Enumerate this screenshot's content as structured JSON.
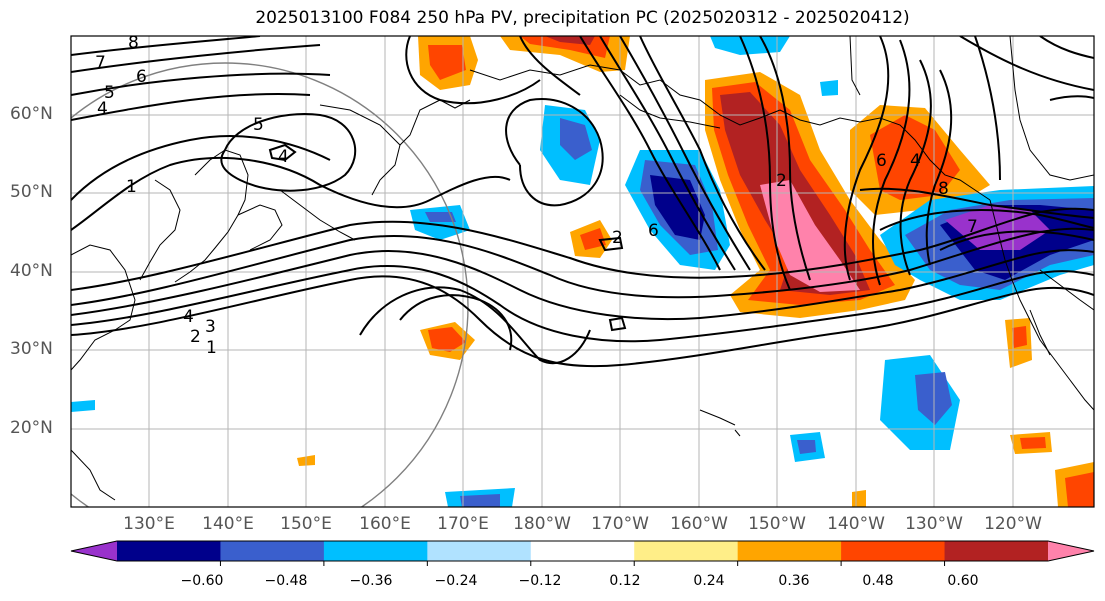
{
  "title": "2025013100 F084 250 hPa PV, precipitation PC (2025020312 - 2025020412)",
  "map": {
    "lat_ticks": [
      "60°N",
      "50°N",
      "40°N",
      "30°N",
      "20°N"
    ],
    "lon_ticks": [
      "130°E",
      "140°E",
      "150°E",
      "160°E",
      "170°E",
      "180°W",
      "170°W",
      "160°W",
      "150°W",
      "140°W",
      "130°W",
      "120°W"
    ],
    "contour_labels": [
      "8",
      "7",
      "6",
      "5",
      "4",
      "5",
      "4",
      "1",
      "1",
      "2",
      "3",
      "4",
      "2",
      "6",
      "2",
      "6",
      "8",
      "4",
      "7"
    ]
  },
  "colorbar": {
    "colors": [
      "#9932cc",
      "#00008b",
      "#3a5fcd",
      "#00bfff",
      "#b0e2ff",
      "#ffffff",
      "#ffee88",
      "#ffa500",
      "#ff4500",
      "#b22222",
      "#ff82ab"
    ],
    "tick_labels": [
      "−0.60",
      "−0.48",
      "−0.36",
      "−0.24",
      "−0.12",
      "0.12",
      "0.24",
      "0.36",
      "0.48",
      "0.60"
    ]
  }
}
